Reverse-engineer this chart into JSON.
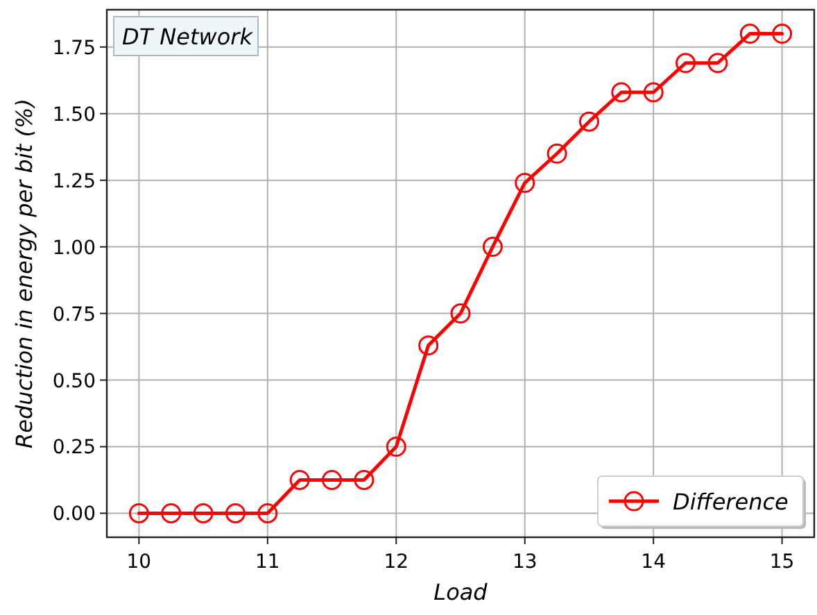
{
  "chart_data": {
    "type": "line",
    "xlabel": "Load",
    "ylabel": "Reduction in energy per bit (%)",
    "annotations": [
      "DT Network"
    ],
    "x": [
      10,
      10.25,
      10.5,
      10.75,
      11,
      11.25,
      11.5,
      11.75,
      12,
      12.25,
      12.5,
      12.75,
      13,
      13.25,
      13.5,
      13.75,
      14,
      14.25,
      14.5,
      14.75,
      15
    ],
    "series": [
      {
        "name": "Difference",
        "color": "#ff0000",
        "values": [
          0,
          0,
          0,
          0,
          0,
          0.125,
          0.125,
          0.125,
          0.25,
          0.63,
          0.75,
          1.0,
          1.24,
          1.35,
          1.47,
          1.58,
          1.58,
          1.69,
          1.69,
          1.8,
          1.8
        ]
      }
    ],
    "xlim": [
      9.75,
      15.25
    ],
    "xticks": [
      10,
      11,
      12,
      13,
      14,
      15
    ],
    "ylim": [
      -0.09,
      1.89
    ],
    "yticks": [
      {
        "value": 0,
        "label": "0.00"
      },
      {
        "value": 0.25,
        "label": "0.25"
      },
      {
        "value": 0.5,
        "label": "0.50"
      },
      {
        "value": 0.75,
        "label": "0.75"
      },
      {
        "value": 1,
        "label": "1.00"
      },
      {
        "value": 1.25,
        "label": "1.25"
      },
      {
        "value": 1.5,
        "label": "1.50"
      },
      {
        "value": 1.75,
        "label": "1.75"
      }
    ],
    "grid": true,
    "legend": "bottom right",
    "marker": "circle",
    "line_style": "solid"
  }
}
